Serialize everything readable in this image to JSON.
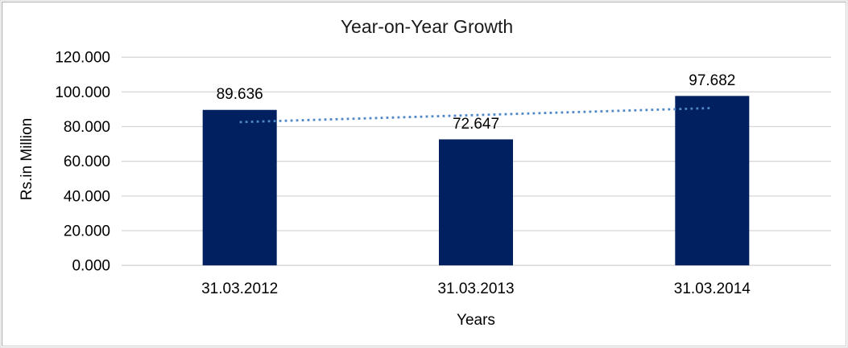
{
  "chart_data": {
    "type": "bar",
    "title": "Year-on-Year Growth",
    "xlabel": "Years",
    "ylabel": "Rs.in Million",
    "categories": [
      "31.03.2012",
      "31.03.2013",
      "31.03.2014"
    ],
    "values": [
      89.636,
      72.647,
      97.682
    ],
    "data_labels": [
      "89.636",
      "72.647",
      "97.682"
    ],
    "ytick_labels": [
      "0.000",
      "20.000",
      "40.000",
      "60.000",
      "80.000",
      "100.000",
      "120.000"
    ],
    "ylim": [
      0,
      120
    ],
    "grid": "horizontal",
    "legend": "none",
    "colors": {
      "bar": "#002060",
      "trendline": "#4f87c7",
      "gridline": "#d6d6d6",
      "background": "#ffffff"
    },
    "trendline": {
      "type": "linear",
      "style": "dotted",
      "start_value": 82.6,
      "end_value": 90.7
    }
  }
}
